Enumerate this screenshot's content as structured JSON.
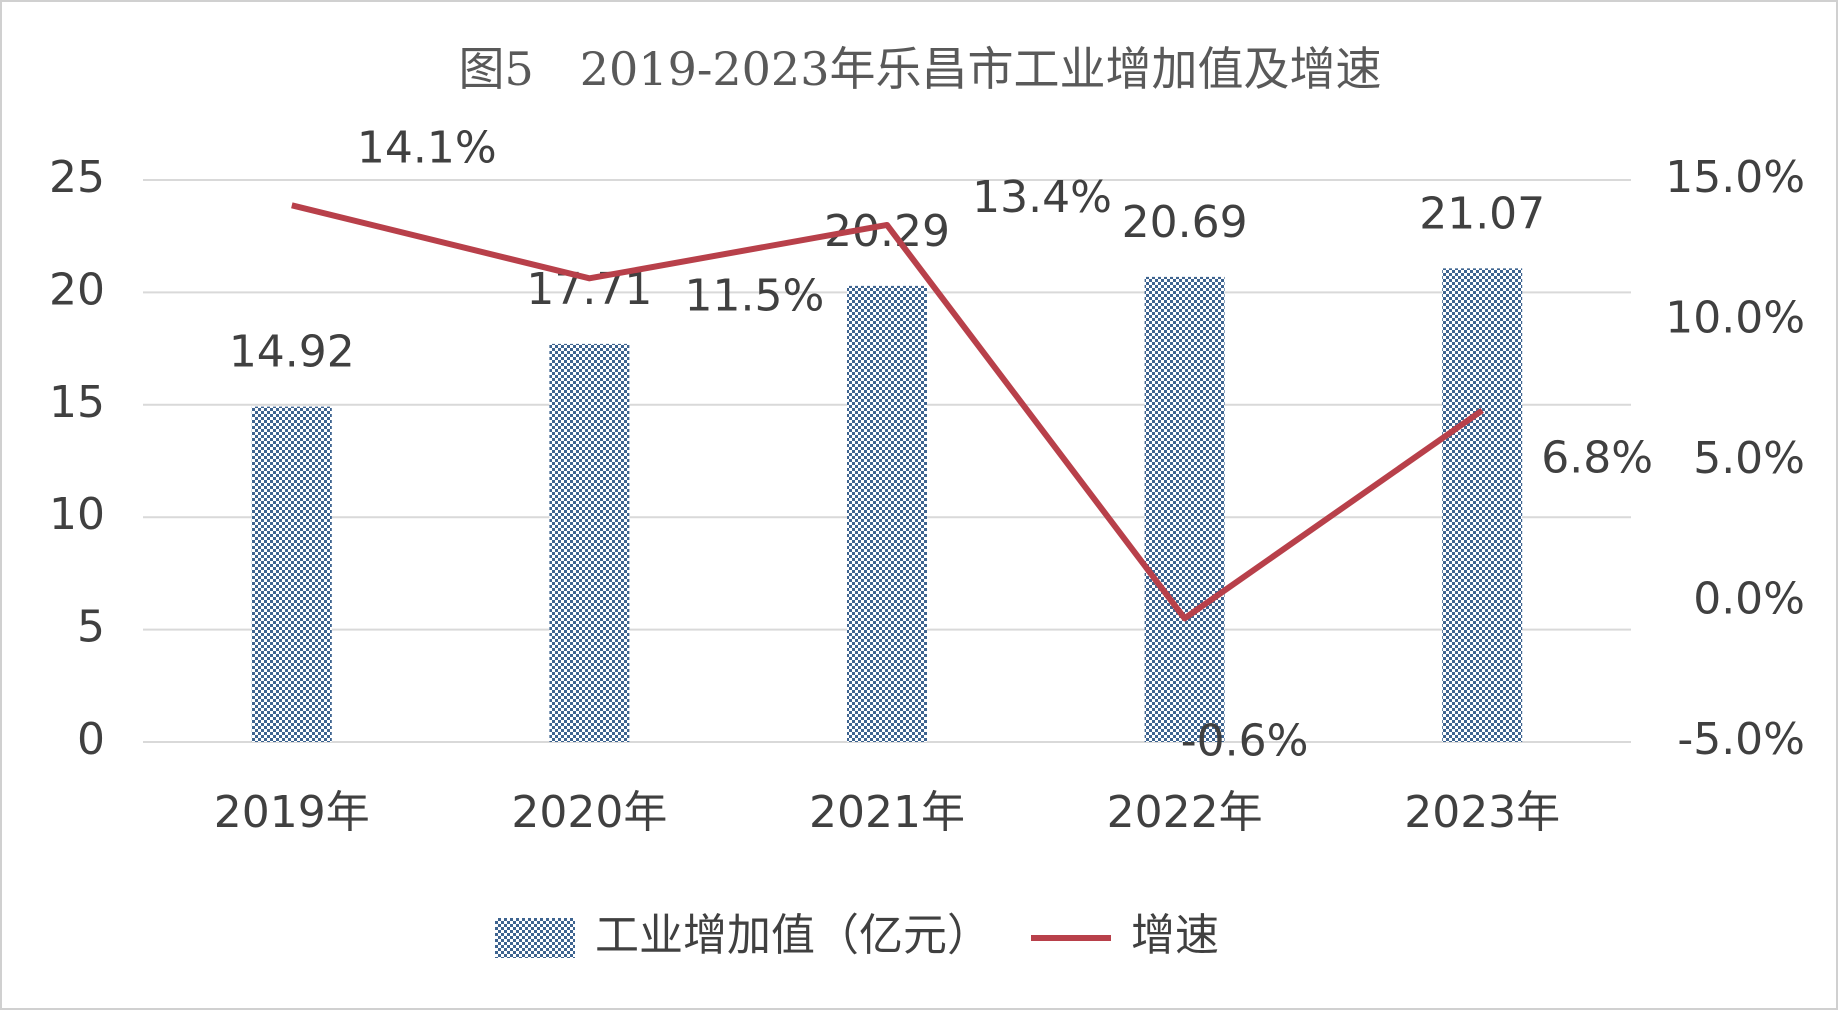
{
  "chart_data": {
    "type": "bar",
    "title": "图5　2019-2023年乐昌市工业增加值及增速",
    "categories": [
      "2019年",
      "2020年",
      "2021年",
      "2022年",
      "2023年"
    ],
    "series": [
      {
        "name": "工业增加值（亿元）",
        "type": "bar",
        "color": "#3e6490",
        "values": [
          14.92,
          17.71,
          20.29,
          20.69,
          21.07
        ]
      },
      {
        "name": "增速",
        "type": "line",
        "axis": "y2",
        "color": "#b8404a",
        "values": [
          14.1,
          11.5,
          13.4,
          -0.6,
          6.8
        ],
        "value_labels": [
          "14.1%",
          "11.5%",
          "13.4%",
          "-0.6%",
          "6.8%"
        ]
      }
    ],
    "ylim": [
      0,
      25
    ],
    "yticks": [
      0,
      5,
      10,
      15,
      20,
      25
    ],
    "y2lim": [
      -5,
      15
    ],
    "y2ticks": [
      {
        "value": -5,
        "label": "-5.0%"
      },
      {
        "value": 0,
        "label": "0.0%"
      },
      {
        "value": 5,
        "label": "5.0%"
      },
      {
        "value": 10,
        "label": "10.0%"
      },
      {
        "value": 15,
        "label": "15.0%"
      }
    ],
    "grid": true,
    "legend": "bottom"
  }
}
